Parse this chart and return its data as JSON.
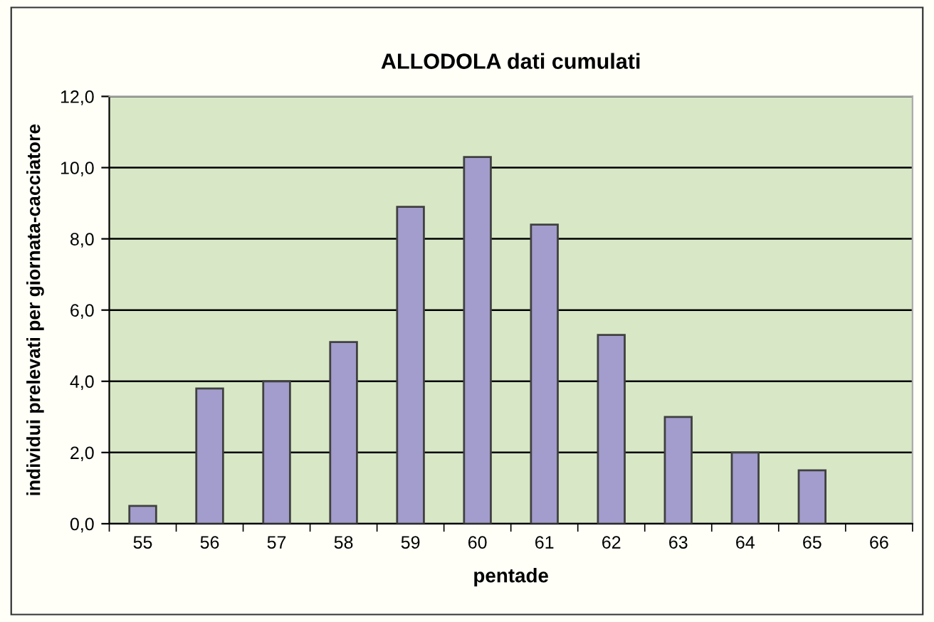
{
  "chart_data": {
    "type": "bar",
    "title": "ALLODOLA dati cumulati",
    "xlabel": "pentade",
    "ylabel": "individui prelevati per giornata-cacciatore",
    "categories": [
      "55",
      "56",
      "57",
      "58",
      "59",
      "60",
      "61",
      "62",
      "63",
      "64",
      "65",
      "66"
    ],
    "values": [
      0.5,
      3.8,
      4.0,
      5.1,
      8.9,
      10.3,
      8.4,
      5.3,
      3.0,
      2.0,
      1.5,
      0
    ],
    "color": "#a29dcc",
    "ylim": [
      0,
      12
    ],
    "yticks": [
      {
        "value": 0,
        "label": "0,0"
      },
      {
        "value": 2,
        "label": "2,0"
      },
      {
        "value": 4,
        "label": "4,0"
      },
      {
        "value": 6,
        "label": "6,0"
      },
      {
        "value": 8,
        "label": "8,0"
      },
      {
        "value": 10,
        "label": "10,0"
      },
      {
        "value": 12,
        "label": "12,0"
      }
    ],
    "grid": "y"
  }
}
